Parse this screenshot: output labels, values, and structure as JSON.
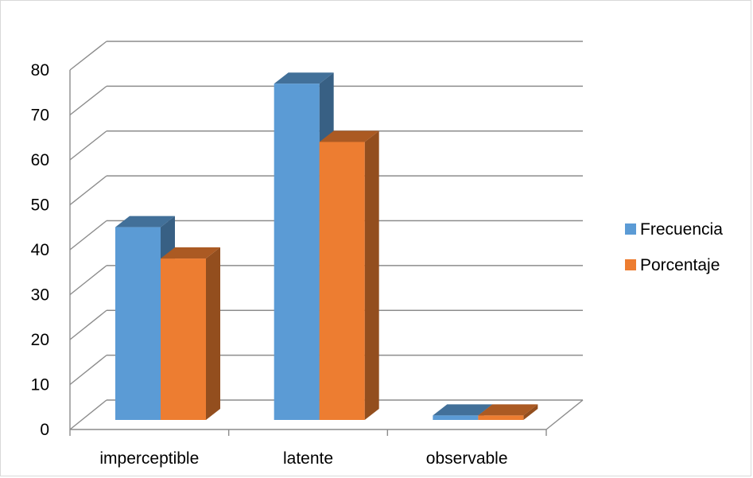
{
  "chart_data": {
    "type": "bar",
    "style": "3d-clustered-column",
    "categories": [
      "imperceptible",
      "latente",
      "observable"
    ],
    "series": [
      {
        "name": "Frecuencia",
        "values": [
          43,
          75,
          1
        ],
        "color": "#5b9bd5"
      },
      {
        "name": "Porcentaje",
        "values": [
          36,
          62,
          1
        ],
        "color": "#ed7d31"
      }
    ],
    "ylim": [
      0,
      80
    ],
    "yticks": [
      0,
      10,
      20,
      30,
      40,
      50,
      60,
      70,
      80
    ],
    "grid": true,
    "legend_position": "right"
  }
}
